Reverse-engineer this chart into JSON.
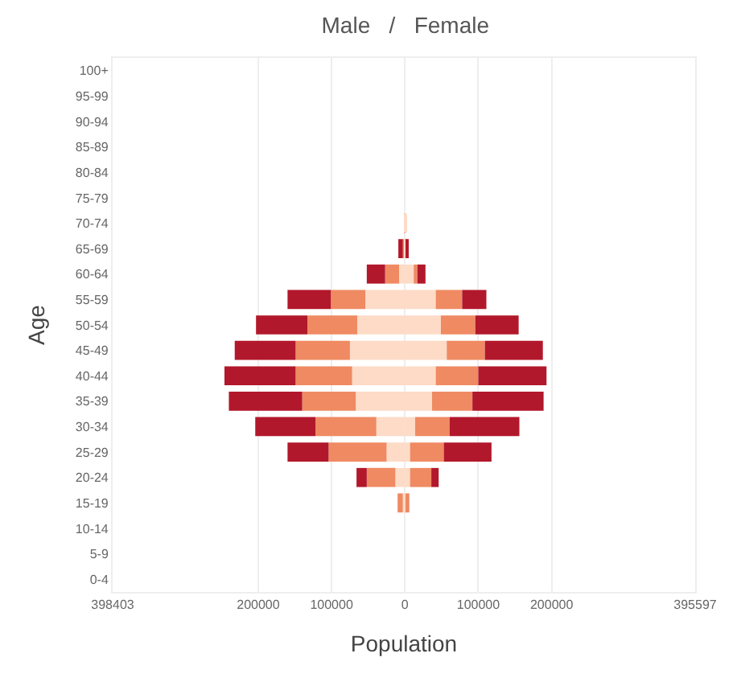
{
  "chart_data": {
    "type": "bar",
    "orientation": "horizontal",
    "stacked": true,
    "title": "Male   /   Female",
    "xlabel": "Population",
    "ylabel": "Age",
    "categories": [
      "100+",
      "95-99",
      "90-94",
      "85-89",
      "80-84",
      "75-79",
      "70-74",
      "65-69",
      "60-64",
      "55-59",
      "50-54",
      "45-49",
      "40-44",
      "35-39",
      "30-34",
      "25-29",
      "20-24",
      "15-19",
      "10-14",
      "5-9",
      "0-4"
    ],
    "series": [
      {
        "color": "#fddbc7",
        "values": [
          0,
          0,
          0,
          0,
          0,
          0,
          0,
          -1000,
          -8000,
          -54000,
          -65000,
          -75000,
          -72000,
          -67000,
          -39000,
          -25000,
          -13000,
          -3000,
          0,
          0,
          0
        ]
      },
      {
        "color": "#ef8a62",
        "values": [
          0,
          0,
          0,
          0,
          0,
          0,
          0,
          -2000,
          -19000,
          -47000,
          -68000,
          -74000,
          -77000,
          -73000,
          -83000,
          -79000,
          -39000,
          -7000,
          0,
          0,
          0
        ]
      },
      {
        "color": "#b2182b",
        "values": [
          0,
          0,
          0,
          0,
          0,
          0,
          -1000,
          -6000,
          -25000,
          -59000,
          -70000,
          -83000,
          -97000,
          -100000,
          -82000,
          -56000,
          -14000,
          0,
          0,
          0,
          0
        ]
      },
      {
        "color": "#fddbc7",
        "values": [
          0,
          0,
          0,
          0,
          0,
          0,
          1000,
          1000,
          12000,
          42000,
          49000,
          57000,
          42000,
          37000,
          14000,
          7000,
          7000,
          2000,
          0,
          0,
          0
        ]
      },
      {
        "color": "#ef8a62",
        "values": [
          0,
          0,
          0,
          0,
          0,
          0,
          0,
          1000,
          5000,
          36000,
          47000,
          52000,
          58000,
          55000,
          47000,
          46000,
          29000,
          4000,
          0,
          0,
          0
        ]
      },
      {
        "color": "#b2182b",
        "values": [
          0,
          0,
          0,
          0,
          0,
          0,
          0,
          1000,
          11000,
          33000,
          59000,
          79000,
          93000,
          97000,
          95000,
          65000,
          10000,
          0,
          0,
          0,
          0
        ]
      }
    ],
    "xlim": [
      -398403,
      395597
    ],
    "xticks": [
      {
        "value": -398403,
        "label": "398403"
      },
      {
        "value": -200000,
        "label": "200000"
      },
      {
        "value": -100000,
        "label": "100000"
      },
      0,
      100000,
      200000,
      395597
    ],
    "grid": "x"
  }
}
